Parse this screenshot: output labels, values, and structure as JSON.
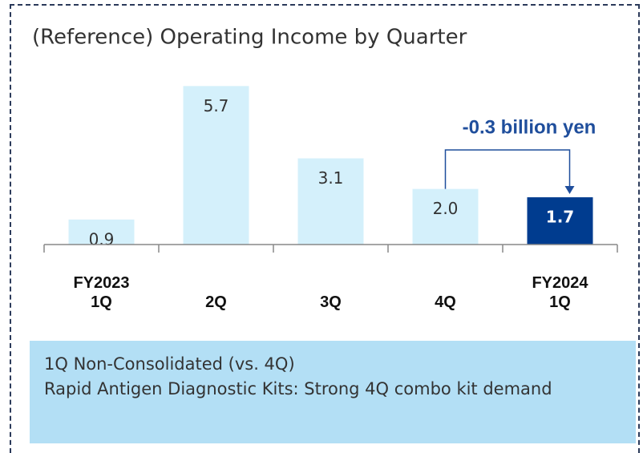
{
  "chart_data": {
    "type": "bar",
    "title": "(Reference) Operating Income by Quarter",
    "categories": [
      "FY2023\n1Q",
      "2Q",
      "3Q",
      "4Q",
      "FY2024\n1Q"
    ],
    "values": [
      0.9,
      5.7,
      3.1,
      2.0,
      1.7
    ],
    "value_labels": [
      "0.9",
      "5.7",
      "3.1",
      "2.0",
      "1.7"
    ],
    "colors": [
      "#d4f0fb",
      "#d4f0fb",
      "#d4f0fb",
      "#d4f0fb",
      "#003c8f"
    ],
    "ylim": [
      0,
      6.2
    ],
    "annotation": "-0.3 billion yen",
    "note_lines": [
      "1Q Non-Consolidated (vs. 4Q)",
      "Rapid Antigen Diagnostic Kits: Strong 4Q combo kit demand"
    ]
  }
}
